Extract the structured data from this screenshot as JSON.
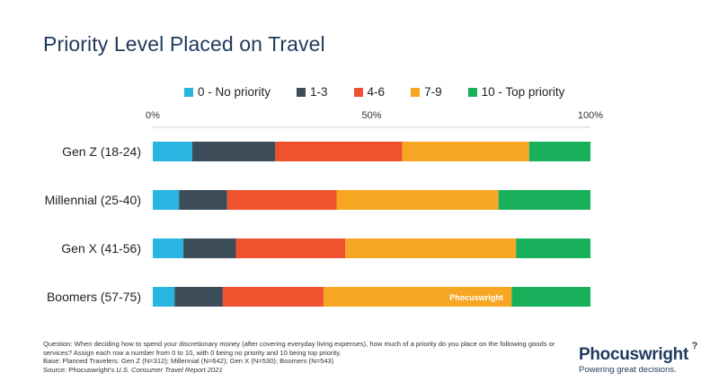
{
  "header": {
    "title": "Priority Level Placed on Travel"
  },
  "chart_data": {
    "type": "bar",
    "orientation": "horizontal",
    "stacked": true,
    "title": "Priority Level Placed on Travel",
    "categories": [
      "Gen Z (18-24)",
      "Millennial (25-40)",
      "Gen X (41-56)",
      "Boomers (57-75)"
    ],
    "series": [
      {
        "name": "0 - No priority",
        "color": "#29b5e1",
        "values": [
          9,
          6,
          7,
          5
        ]
      },
      {
        "name": "1-3",
        "color": "#3d4c59",
        "values": [
          19,
          11,
          12,
          11
        ]
      },
      {
        "name": "4-6",
        "color": "#f0522f",
        "values": [
          29,
          25,
          25,
          23
        ]
      },
      {
        "name": "7-9",
        "color": "#f6a623",
        "values": [
          29,
          37,
          39,
          43
        ]
      },
      {
        "name": "10 - Top priority",
        "color": "#19b05b",
        "values": [
          14,
          21,
          17,
          18
        ]
      }
    ],
    "xlim": [
      0,
      100
    ],
    "tick_values": [
      0,
      50,
      100
    ],
    "tick_labels": [
      "0%",
      "50%",
      "100%"
    ],
    "watermark": "Phocuswright"
  },
  "footnote": {
    "question": "Question: When deciding how to spend your discretionary money (after covering everyday living expenses), how much of a priority do you place on the following goods or services? Assign each row a number from 0 to 10, with 0 being no priority and 10 being top priority.",
    "base": "Base: Planned Travelers: Gen Z (N=312); Millennial (N=642); Gen X (N=530); Boomers (N=543)",
    "source_prefix": "Source: Phocuswright's ",
    "source_title": "U.S. Consumer Travel Report 2021"
  },
  "logo": {
    "name": "Phocuswright",
    "tagline": "Powering great decisions."
  }
}
